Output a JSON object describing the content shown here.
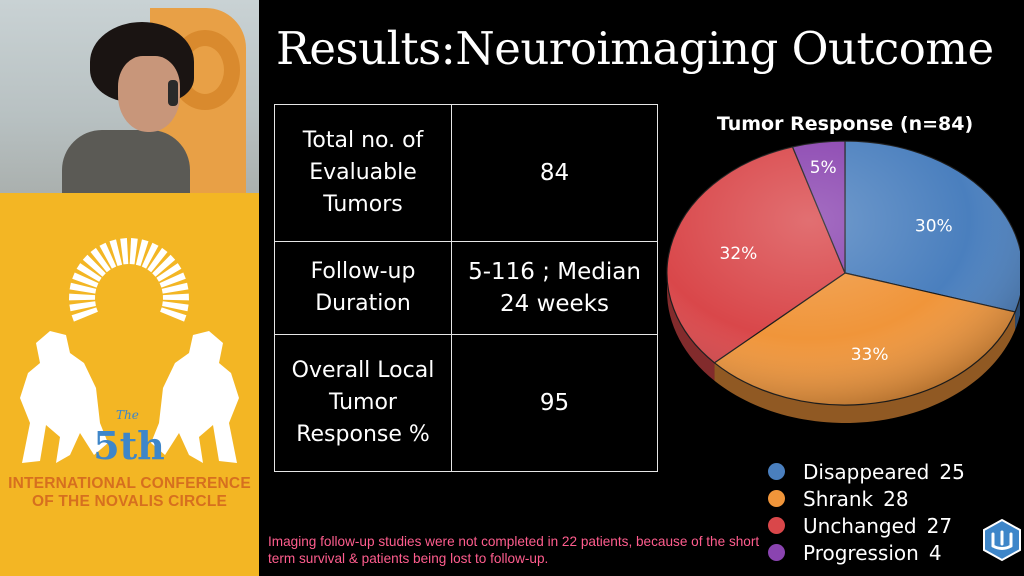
{
  "slide": {
    "title": "Results:Neuroimaging Outcome",
    "footnote": "Imaging follow-up studies were not completed in 22 patients, because of the short term survival & patients being lost to follow-up."
  },
  "summary_table": {
    "rows": [
      {
        "label": "Total no. of Evaluable Tumors",
        "value": "84"
      },
      {
        "label": "Follow-up Duration",
        "value": "5-116 ; Median 24 weeks"
      },
      {
        "label": "Overall Local Tumor Response %",
        "value": "95"
      }
    ]
  },
  "conference": {
    "edition_sup": "The",
    "edition": "5th",
    "line1": "INTERNATIONAL CONFERENCE",
    "line2": "OF THE NOVALIS CIRCLE"
  },
  "chart_data": {
    "type": "pie",
    "title": "Tumor Response (n=84)",
    "slices": [
      {
        "label": "Disappeared",
        "value": 25,
        "percent_label": "30%",
        "color": "#4a7fbe"
      },
      {
        "label": "Shrank",
        "value": 28,
        "percent_label": "33%",
        "color": "#f0953a"
      },
      {
        "label": "Unchanged",
        "value": 27,
        "percent_label": "32%",
        "color": "#d9474a"
      },
      {
        "label": "Progression",
        "value": 4,
        "percent_label": "5%",
        "color": "#8a44b0"
      }
    ],
    "legend": {
      "position": "bottom-right"
    }
  },
  "colors": {
    "sidebar_bg": "#f3b624",
    "conference_text": "#d66f1f",
    "footnote_text": "#ff5d8e",
    "brand_blue": "#3e86c9"
  }
}
